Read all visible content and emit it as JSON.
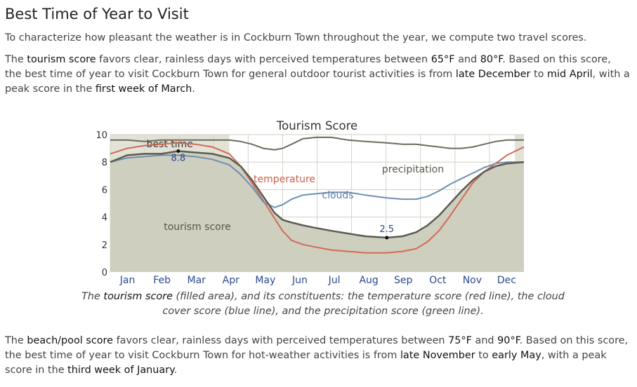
{
  "page": {
    "title": "Best Time of Year to Visit",
    "intro": "To characterize how pleasant the weather is in Cockburn Town throughout the year, we compute two travel scores.",
    "tourism_paragraph": {
      "t1": "The ",
      "b1": "tourism score",
      "t2": " favors clear, rainless days with perceived temperatures between ",
      "b2": "65°F",
      "t3": " and ",
      "b3": "80°F",
      "t4": ". Based on this score, the best time of year to visit Cockburn Town for general outdoor tourist activities is from ",
      "b4": "late December",
      "t5": " to ",
      "b5": "mid April",
      "t6": ", with a peak score in the ",
      "b6": "first week of March",
      "t7": "."
    },
    "caption": {
      "t1": "The ",
      "b1": "tourism score",
      "t2": " (filled area), and its constituents: the temperature score (red line), the cloud cover score (blue line), and the precipitation score (green line)."
    },
    "beach_paragraph": {
      "t1": "The ",
      "b1": "beach/pool score",
      "t2": " favors clear, rainless days with perceived temperatures between ",
      "b2": "75°F",
      "t3": " and ",
      "b3": "90°F",
      "t4": ". Based on this score, the best time of year to visit Cockburn Town for hot-weather activities is from ",
      "b4": "late November",
      "t5": " to ",
      "b5": "early May",
      "t6": ", with a peak score in the ",
      "b6": "third week of January",
      "t7": "."
    }
  },
  "chart_data": {
    "type": "area",
    "title": "Tourism Score",
    "x_unit": "day of year",
    "xlim": [
      0,
      365
    ],
    "ylim": [
      0,
      10
    ],
    "yticks": [
      0,
      2,
      4,
      6,
      8,
      10
    ],
    "month_labels": [
      "Jan",
      "Feb",
      "Mar",
      "Apr",
      "May",
      "Jun",
      "Jul",
      "Aug",
      "Sep",
      "Oct",
      "Nov",
      "Dec"
    ],
    "grid": true,
    "best_time": {
      "label": "best time",
      "ranges": [
        [
          0,
          105
        ],
        [
          357,
          365
        ]
      ]
    },
    "peak": {
      "x": 60,
      "value": 8.8,
      "label": "8.8"
    },
    "low": {
      "x": 244,
      "value": 2.5,
      "label": "2.5"
    },
    "series": [
      {
        "name": "tourism score",
        "role": "area",
        "color": "#5c5c50",
        "fill": "#cfcfc0",
        "x": [
          0,
          15,
          30,
          45,
          60,
          75,
          90,
          105,
          115,
          125,
          135,
          145,
          152,
          160,
          170,
          182,
          195,
          210,
          225,
          244,
          258,
          270,
          280,
          290,
          300,
          310,
          320,
          330,
          340,
          350,
          365
        ],
        "y": [
          8.0,
          8.5,
          8.6,
          8.6,
          8.8,
          8.7,
          8.6,
          8.3,
          7.7,
          6.7,
          5.5,
          4.3,
          3.8,
          3.6,
          3.4,
          3.2,
          3.0,
          2.8,
          2.6,
          2.5,
          2.6,
          2.9,
          3.4,
          4.1,
          5.0,
          5.9,
          6.7,
          7.3,
          7.7,
          7.9,
          8.0
        ]
      },
      {
        "name": "temperature",
        "role": "line",
        "color": "#d06a55",
        "x": [
          0,
          15,
          30,
          45,
          60,
          75,
          90,
          105,
          115,
          125,
          135,
          145,
          152,
          160,
          170,
          182,
          195,
          210,
          225,
          244,
          258,
          270,
          280,
          290,
          300,
          310,
          320,
          330,
          340,
          350,
          365
        ],
        "y": [
          8.6,
          9.0,
          9.2,
          9.3,
          9.4,
          9.3,
          9.1,
          8.6,
          7.7,
          6.5,
          5.2,
          3.9,
          3.0,
          2.3,
          2.0,
          1.8,
          1.6,
          1.5,
          1.4,
          1.4,
          1.5,
          1.7,
          2.2,
          3.0,
          4.1,
          5.3,
          6.5,
          7.3,
          7.9,
          8.5,
          9.1
        ]
      },
      {
        "name": "clouds",
        "role": "line",
        "color": "#6f8fae",
        "x": [
          0,
          15,
          30,
          45,
          60,
          75,
          90,
          105,
          115,
          125,
          135,
          145,
          152,
          160,
          170,
          182,
          195,
          210,
          225,
          244,
          258,
          270,
          280,
          290,
          300,
          310,
          320,
          330,
          340,
          350,
          365
        ],
        "y": [
          8.0,
          8.3,
          8.4,
          8.5,
          8.5,
          8.4,
          8.2,
          7.8,
          7.1,
          6.2,
          5.1,
          4.7,
          4.9,
          5.3,
          5.6,
          5.7,
          5.8,
          5.8,
          5.6,
          5.4,
          5.3,
          5.3,
          5.5,
          5.9,
          6.4,
          6.8,
          7.2,
          7.6,
          7.9,
          8.0,
          8.0
        ]
      },
      {
        "name": "precipitation",
        "role": "line",
        "color": "#6b6b5c",
        "x": [
          0,
          15,
          30,
          45,
          60,
          75,
          90,
          105,
          115,
          125,
          135,
          145,
          152,
          160,
          170,
          182,
          195,
          210,
          225,
          244,
          258,
          270,
          280,
          290,
          300,
          310,
          320,
          330,
          340,
          350,
          365
        ],
        "y": [
          9.6,
          9.6,
          9.5,
          9.6,
          9.6,
          9.6,
          9.6,
          9.6,
          9.5,
          9.3,
          9.0,
          8.9,
          9.0,
          9.3,
          9.7,
          9.8,
          9.8,
          9.6,
          9.5,
          9.4,
          9.3,
          9.3,
          9.2,
          9.1,
          9.0,
          9.0,
          9.1,
          9.3,
          9.5,
          9.6,
          9.6
        ]
      }
    ],
    "series_labels": {
      "tourism": "tourism score",
      "temperature": "temperature",
      "clouds": "clouds",
      "precipitation": "precipitation"
    }
  }
}
